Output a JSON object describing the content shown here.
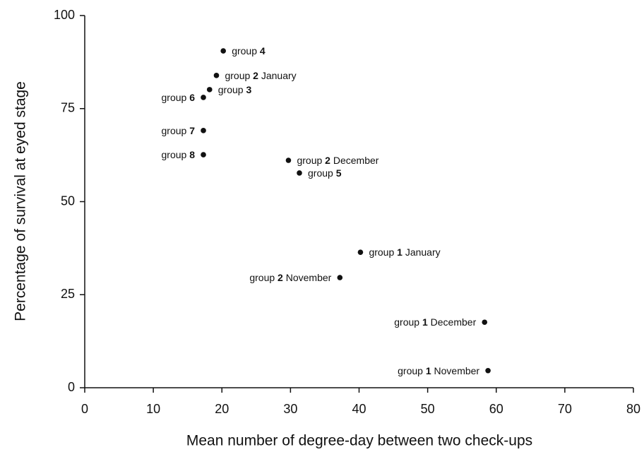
{
  "chart_data": {
    "type": "scatter",
    "x_label": "Mean number of degree-day between two check-ups",
    "y_label": "Percentage of survival at eyed stage",
    "xlim": [
      0,
      80
    ],
    "ylim": [
      0,
      100
    ],
    "xticks": [
      0,
      10,
      20,
      30,
      40,
      50,
      60,
      70,
      80
    ],
    "yticks": [
      0,
      25,
      50,
      75,
      100
    ],
    "color": "#111111",
    "point_labels": [
      "group 4",
      "group 2 January",
      "group 3",
      "group 6",
      "group 7",
      "group 8",
      "group 2 December",
      "group 5",
      "group 1 January",
      "group 2 November",
      "group 1 December",
      "group 1 November"
    ],
    "x": [
      20.2,
      19.2,
      18.2,
      17.3,
      17.3,
      17.3,
      29.7,
      31.3,
      40.2,
      37.2,
      58.3,
      58.8
    ],
    "values": [
      90.5,
      83.9,
      80.1,
      78.0,
      69.1,
      62.6,
      61.1,
      57.7,
      36.4,
      29.6,
      17.6,
      4.6
    ]
  }
}
